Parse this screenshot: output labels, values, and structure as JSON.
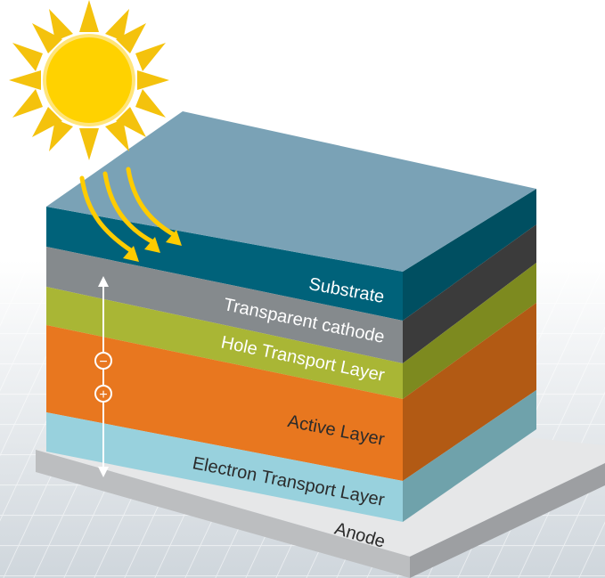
{
  "layers": [
    {
      "key": "substrate",
      "label": "Substrate",
      "color": "#00627a"
    },
    {
      "key": "cathode",
      "label": "Transparent cathode",
      "color": "#858a8d"
    },
    {
      "key": "htl",
      "label": "Hole Transport Layer",
      "color": "#a9b635"
    },
    {
      "key": "active",
      "label": "Active Layer",
      "color": "#e8771f"
    },
    {
      "key": "etl",
      "label": "Electron Transport Layer",
      "color": "#98d1dd"
    },
    {
      "key": "anode",
      "label": "Anode",
      "color": "#bcbec0"
    }
  ],
  "charges": {
    "negative": "−",
    "positive": "+"
  },
  "colors": {
    "top_face": "#7aa2b6",
    "sun": "#ffd200",
    "sun_rays": "#f4c20d",
    "light_rays": "#ffcc00",
    "background_panel": "#dfe4e8"
  }
}
